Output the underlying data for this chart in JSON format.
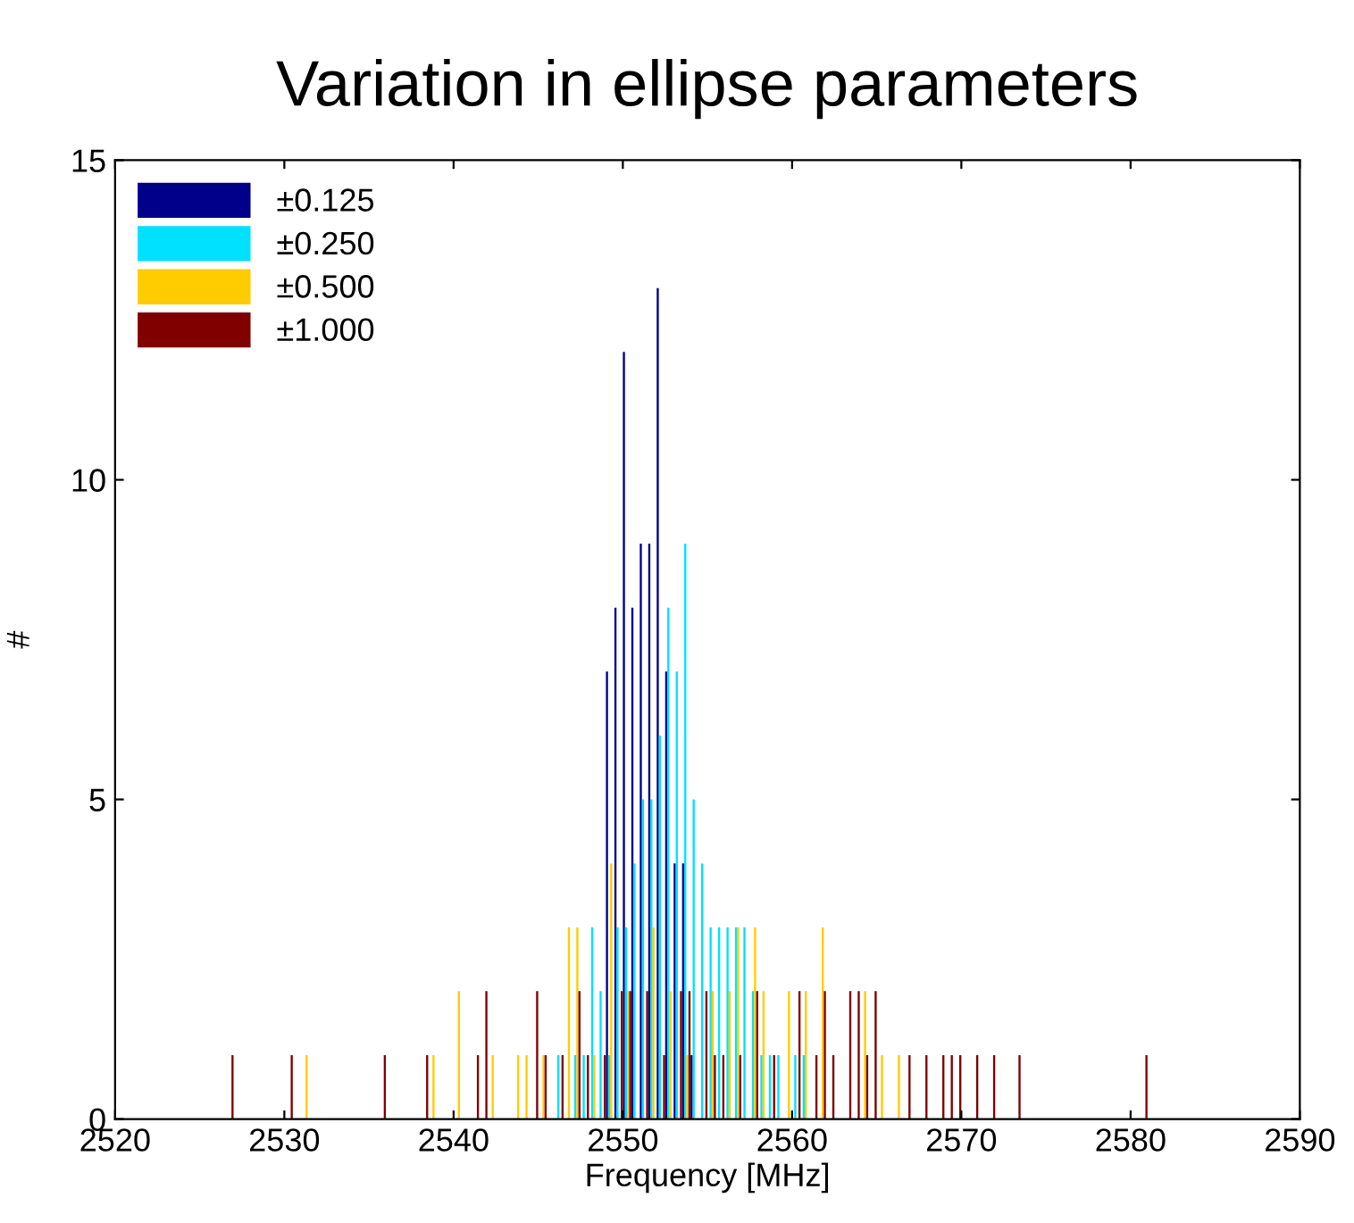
{
  "chart_data": {
    "type": "histogram",
    "title": "Variation in ellipse parameters",
    "xlabel": "Frequency [MHz]",
    "ylabel": "#",
    "xlim": [
      2520,
      2590
    ],
    "xticks": [
      2520,
      2530,
      2540,
      2550,
      2560,
      2570,
      2580,
      2590
    ],
    "ylim": [
      0,
      15
    ],
    "yticks": [
      0,
      5,
      10,
      15
    ],
    "grid": false,
    "legend": "top left",
    "bins": [
      2526,
      2526.5,
      2527,
      2527.5,
      2528,
      2528.5,
      2529,
      2529.5,
      2530,
      2530.5,
      2531,
      2531.5,
      2532,
      2532.5,
      2533,
      2533.5,
      2534,
      2534.5,
      2535,
      2535.5,
      2536,
      2536.5,
      2537,
      2537.5,
      2538,
      2538.5,
      2539,
      2539.5,
      2540,
      2540.5,
      2541,
      2541.5,
      2542,
      2542.5,
      2543,
      2543.5,
      2544,
      2544.5,
      2545,
      2545.5,
      2546,
      2546.5,
      2547,
      2547.5,
      2548,
      2548.5,
      2549,
      2549.5,
      2550,
      2550.5,
      2551,
      2551.5,
      2552,
      2552.5,
      2553,
      2553.5,
      2554,
      2554.5,
      2555,
      2555.5,
      2556,
      2556.5,
      2557,
      2557.5,
      2558,
      2558.5,
      2559,
      2559.5,
      2560,
      2560.5,
      2561,
      2561.5,
      2562,
      2562.5,
      2563,
      2563.5,
      2564,
      2564.5,
      2565,
      2565.5,
      2566,
      2566.5,
      2567,
      2567.5,
      2568,
      2568.5,
      2569,
      2569.5,
      2570,
      2570.5,
      2571,
      2571.5,
      2572,
      2572.5,
      2573,
      2573.5,
      2574,
      2574.5,
      2575,
      2575.5,
      2576,
      2576.5,
      2577,
      2577.5,
      2578,
      2578.5,
      2579,
      2579.5,
      2580,
      2580.5,
      2581,
      2581.5,
      2582
    ],
    "series": [
      {
        "name": "±0.125",
        "color": "#00008b",
        "values": [
          0,
          0,
          0,
          0,
          0,
          0,
          0,
          0,
          0,
          0,
          0,
          0,
          0,
          0,
          0,
          0,
          0,
          0,
          0,
          0,
          0,
          0,
          0,
          0,
          0,
          0,
          0,
          0,
          0,
          0,
          0,
          0,
          0,
          0,
          0,
          0,
          0,
          0,
          0,
          0,
          0,
          0,
          0,
          0,
          0,
          0,
          7,
          8,
          12,
          8,
          9,
          9,
          13,
          7,
          4,
          4,
          1,
          0,
          0,
          0,
          0,
          0,
          0,
          0,
          0,
          0,
          0,
          0,
          0,
          0,
          0,
          0,
          0,
          0,
          0,
          0,
          0,
          0,
          0,
          0,
          0,
          0,
          0,
          0,
          0,
          0,
          0,
          0,
          0,
          0,
          0,
          0,
          0,
          0,
          0,
          0,
          0,
          0,
          0,
          0,
          0,
          0,
          0,
          0,
          0,
          0,
          0,
          0,
          0,
          0,
          0,
          0
        ]
      },
      {
        "name": "±0.250",
        "color": "#00e0ff",
        "values": [
          0,
          0,
          0,
          0,
          0,
          0,
          0,
          0,
          0,
          0,
          0,
          0,
          0,
          0,
          0,
          0,
          0,
          0,
          0,
          0,
          0,
          0,
          0,
          0,
          0,
          0,
          0,
          0,
          0,
          0,
          0,
          0,
          0,
          0,
          0,
          0,
          0,
          0,
          0,
          0,
          1,
          0,
          1,
          1,
          3,
          2,
          1,
          3,
          3,
          4,
          5,
          5,
          6,
          8,
          7,
          9,
          5,
          4,
          3,
          3,
          3,
          3,
          3,
          2,
          1,
          1,
          1,
          0,
          1,
          1,
          0,
          0,
          0,
          0,
          0,
          0,
          0,
          0,
          0,
          0,
          0,
          0,
          0,
          0,
          0,
          0,
          0,
          0,
          0,
          0,
          0,
          0,
          0,
          0,
          0,
          0,
          0,
          0,
          0,
          0,
          0,
          0,
          0,
          0,
          0,
          0,
          0,
          0,
          0,
          0,
          0,
          0
        ]
      },
      {
        "name": "±0.500",
        "color": "#ffcc00",
        "values": [
          0,
          0,
          0,
          0,
          0,
          0,
          0,
          0,
          0,
          0,
          1,
          0,
          0,
          0,
          0,
          0,
          0,
          0,
          0,
          0,
          0,
          0,
          0,
          0,
          0,
          1,
          0,
          0,
          2,
          0,
          0,
          0,
          1,
          0,
          0,
          1,
          1,
          0,
          1,
          0,
          0,
          3,
          3,
          0,
          1,
          0,
          4,
          0,
          2,
          0,
          0,
          3,
          0,
          2,
          0,
          1,
          0,
          0,
          2,
          0,
          2,
          3,
          0,
          3,
          2,
          0,
          0,
          2,
          0,
          2,
          0,
          3,
          0,
          0,
          0,
          0,
          2,
          0,
          1,
          0,
          1,
          0,
          0,
          0,
          0,
          0,
          0,
          0,
          0,
          0,
          0,
          0,
          0,
          0,
          0,
          0,
          0,
          0,
          0,
          0,
          0,
          0,
          0,
          0,
          0,
          0,
          0,
          0,
          0,
          0,
          0,
          0
        ]
      },
      {
        "name": "±1.000",
        "color": "#800000",
        "values": [
          0,
          1,
          0,
          0,
          0,
          0,
          0,
          0,
          1,
          0,
          0,
          0,
          0,
          0,
          0,
          0,
          0,
          0,
          0,
          1,
          0,
          0,
          0,
          0,
          1,
          0,
          0,
          0,
          0,
          0,
          1,
          2,
          0,
          0,
          0,
          0,
          0,
          2,
          1,
          0,
          1,
          0,
          2,
          1,
          0,
          1,
          0,
          2,
          2,
          0,
          2,
          0,
          1,
          0,
          2,
          2,
          0,
          2,
          1,
          1,
          0,
          1,
          0,
          2,
          0,
          1,
          0,
          0,
          2,
          0,
          1,
          2,
          1,
          0,
          2,
          2,
          1,
          2,
          0,
          0,
          0,
          1,
          0,
          1,
          0,
          1,
          1,
          1,
          0,
          1,
          0,
          1,
          0,
          0,
          1,
          0,
          0,
          0,
          0,
          0,
          0,
          0,
          0,
          0,
          0,
          0,
          0,
          0,
          0,
          1,
          0,
          0
        ]
      }
    ]
  }
}
